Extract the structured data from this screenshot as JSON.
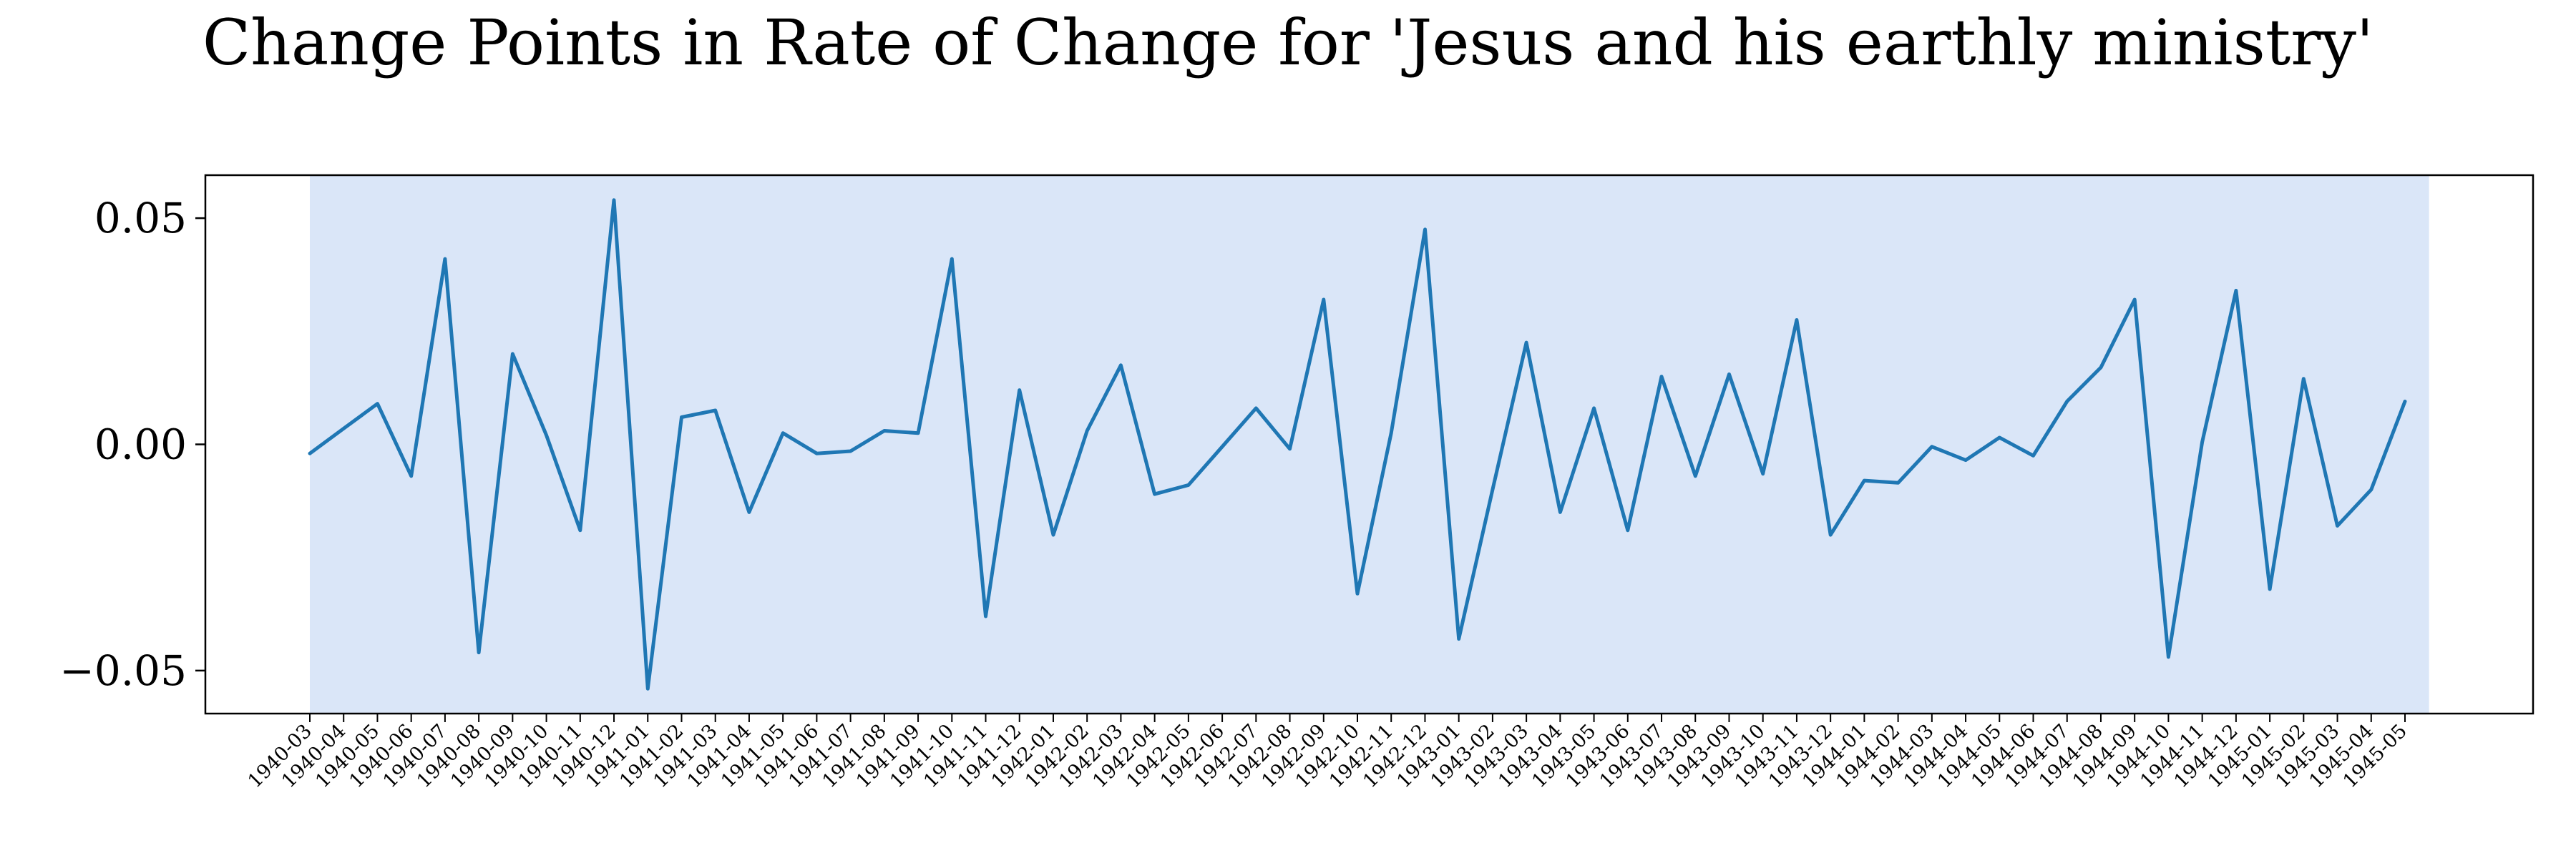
{
  "chart_data": {
    "type": "line",
    "title": "Change Points in Rate of Change for 'Jesus and his earthly ministry'",
    "xlabel": "",
    "ylabel": "",
    "ylim": [
      -0.0595,
      0.0595
    ],
    "yticks": [
      0.05,
      0.0,
      -0.05
    ],
    "ytick_labels": [
      "0.05",
      "0.00",
      "−0.05"
    ],
    "grid": false,
    "shaded_region": {
      "from": "1940-03",
      "to": "1945-05",
      "color": "#dae6f8"
    },
    "line_color": "#1f77b4",
    "categories": [
      "1940-03",
      "1940-04",
      "1940-05",
      "1940-06",
      "1940-07",
      "1940-08",
      "1940-09",
      "1940-10",
      "1940-11",
      "1940-12",
      "1941-01",
      "1941-02",
      "1941-03",
      "1941-04",
      "1941-05",
      "1941-06",
      "1941-07",
      "1941-08",
      "1941-09",
      "1941-10",
      "1941-11",
      "1941-12",
      "1942-01",
      "1942-02",
      "1942-03",
      "1942-04",
      "1942-05",
      "1942-06",
      "1942-07",
      "1942-08",
      "1942-09",
      "1942-10",
      "1942-11",
      "1942-12",
      "1943-01",
      "1943-02",
      "1943-03",
      "1943-04",
      "1943-05",
      "1943-06",
      "1943-07",
      "1943-08",
      "1943-09",
      "1943-10",
      "1943-11",
      "1943-12",
      "1944-01",
      "1944-02",
      "1944-03",
      "1944-04",
      "1944-05",
      "1944-06",
      "1944-07",
      "1944-08",
      "1944-09",
      "1944-10",
      "1944-11",
      "1944-12",
      "1945-01",
      "1945-02",
      "1945-03",
      "1945-04",
      "1945-05"
    ],
    "series": [
      {
        "values": [
          -0.002,
          0.0035,
          0.009,
          -0.007,
          0.041,
          -0.046,
          0.02,
          0.002,
          -0.019,
          0.054,
          -0.054,
          0.006,
          0.0075,
          -0.015,
          0.0025,
          -0.002,
          -0.0015,
          0.003,
          0.0025,
          0.041,
          -0.038,
          0.012,
          -0.02,
          0.003,
          0.0175,
          -0.011,
          -0.009,
          -0.0005,
          0.008,
          -0.001,
          0.032,
          -0.033,
          0.0025,
          0.0475,
          -0.043,
          -0.01,
          0.0225,
          -0.015,
          0.008,
          -0.019,
          0.015,
          -0.007,
          0.0155,
          -0.0065,
          0.0275,
          -0.02,
          -0.008,
          -0.0085,
          -0.0005,
          -0.0035,
          0.0015,
          -0.0025,
          0.0095,
          0.017,
          0.032,
          -0.047,
          0.0005,
          0.034,
          -0.032,
          0.0145,
          -0.018,
          -0.01,
          0.0095
        ]
      }
    ]
  }
}
